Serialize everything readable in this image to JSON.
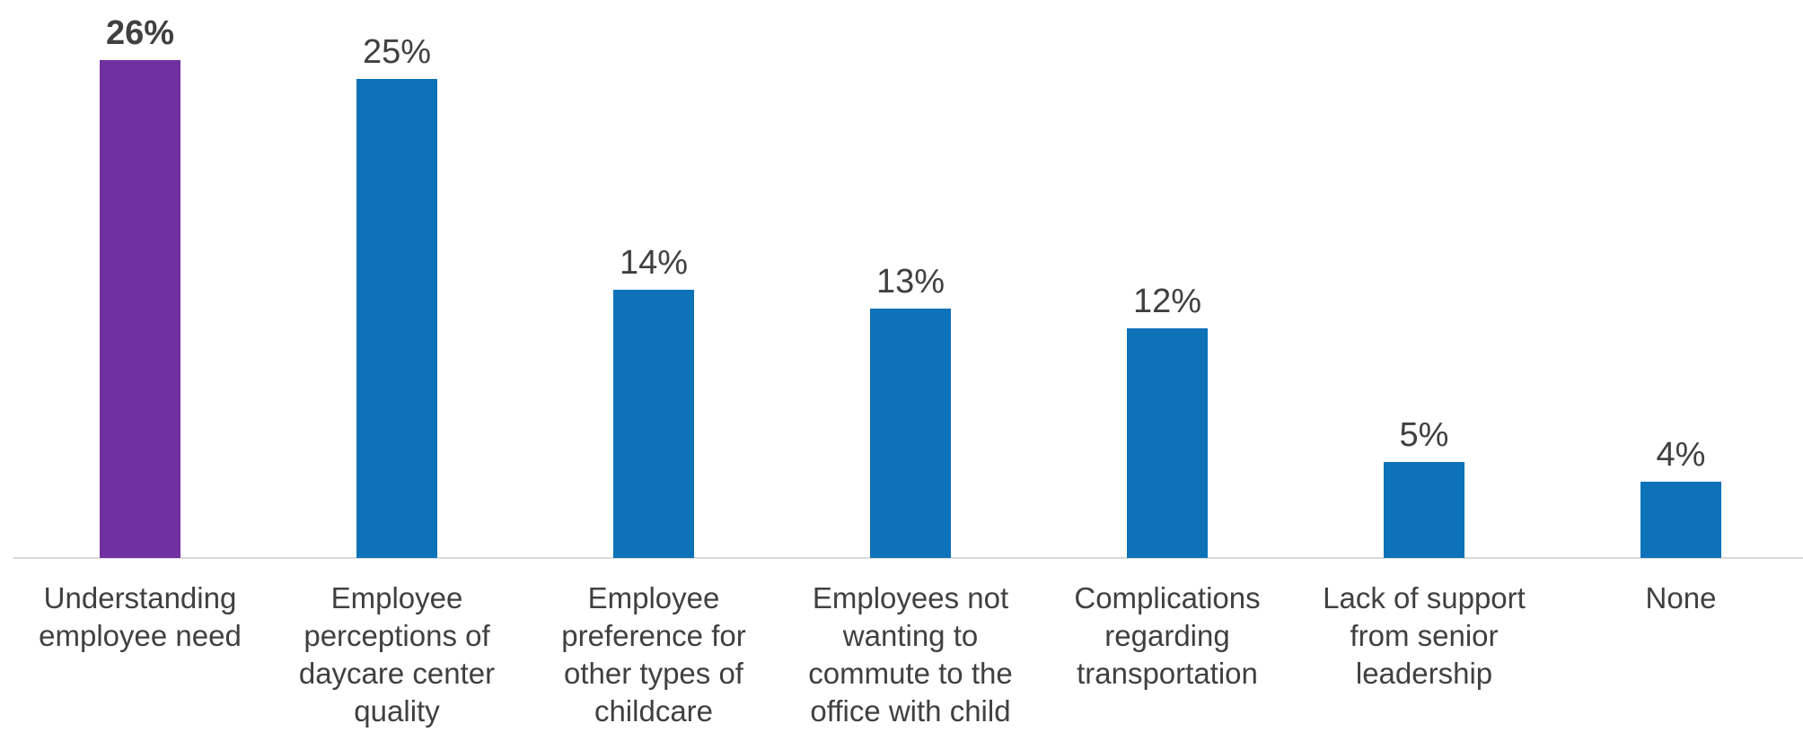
{
  "chart_data": {
    "type": "bar",
    "categories": [
      "Understanding employee need",
      "Employee perceptions of daycare center quality",
      "Employee preference for other types of childcare",
      "Employees not wanting to commute to the office with child",
      "Complications regarding transportation",
      "Lack of support from senior leadership",
      "None"
    ],
    "values": [
      26,
      25,
      14,
      13,
      12,
      5,
      4
    ],
    "value_labels": [
      "26%",
      "25%",
      "14%",
      "13%",
      "12%",
      "5%",
      "4%"
    ],
    "colors": [
      "#7030a0",
      "#0e72b8",
      "#0e72b8",
      "#0e72b8",
      "#0e72b8",
      "#0e72b8",
      "#0e72b8"
    ],
    "highlight_index": 0
  }
}
